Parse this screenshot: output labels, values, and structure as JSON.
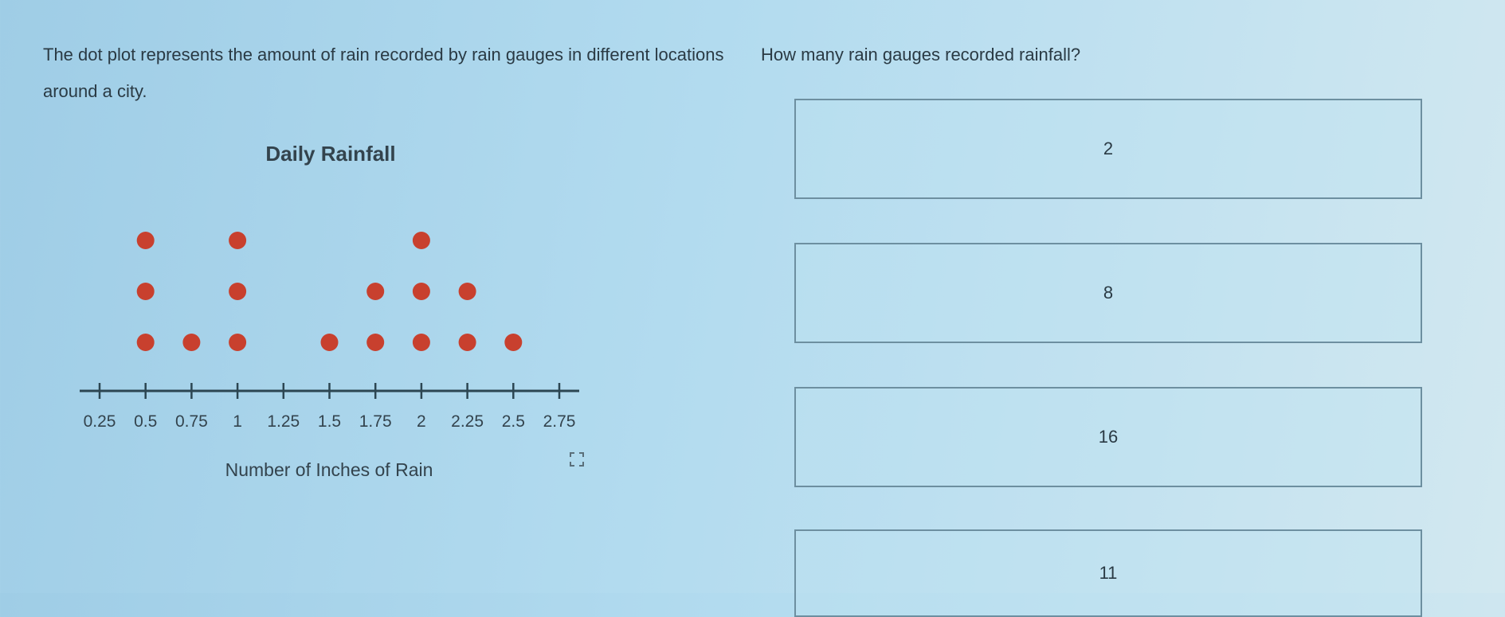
{
  "prompt": "The dot plot represents the amount of rain recorded by rain gauges in different locations around a city.",
  "question": "How many rain gauges recorded rainfall?",
  "choices": [
    "2",
    "8",
    "16",
    "11"
  ],
  "expand_icon": "expand-brackets-icon",
  "chart_data": {
    "type": "dot-plot",
    "title": "Daily Rainfall",
    "xlabel": "Number of Inches of Rain",
    "ticks": [
      "0.25",
      "0.5",
      "0.75",
      "1",
      "1.25",
      "1.5",
      "1.75",
      "2",
      "2.25",
      "2.5",
      "2.75"
    ],
    "xlim": [
      0.25,
      2.75
    ],
    "points": [
      {
        "x": 0.5,
        "count": 3
      },
      {
        "x": 0.75,
        "count": 1
      },
      {
        "x": 1,
        "count": 3
      },
      {
        "x": 1.5,
        "count": 1
      },
      {
        "x": 1.75,
        "count": 2
      },
      {
        "x": 2,
        "count": 3
      },
      {
        "x": 2.25,
        "count": 2
      },
      {
        "x": 2.5,
        "count": 1
      }
    ],
    "dot_color": "#c8402e",
    "axis_color": "#2c4652"
  }
}
